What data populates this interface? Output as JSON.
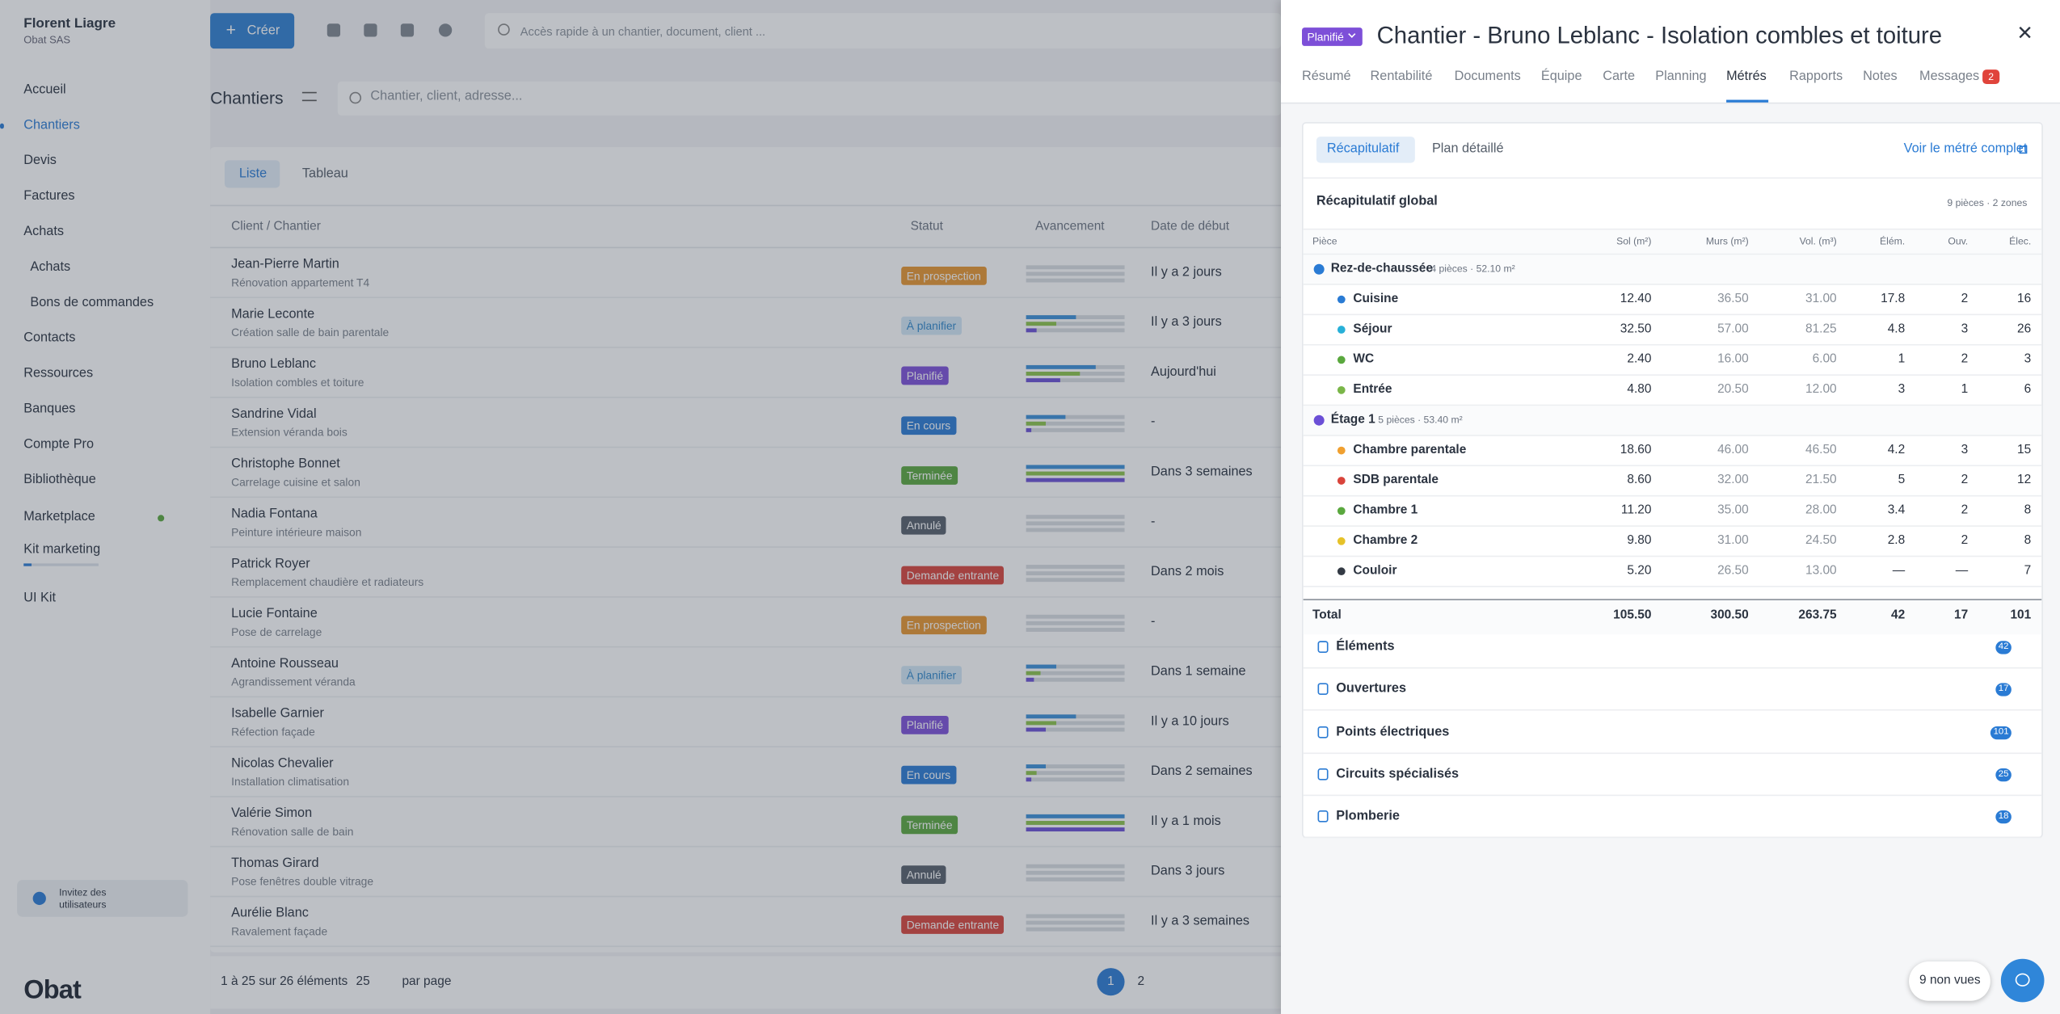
{
  "sidebar": {
    "user": "Florent Liagre",
    "company": "Obat SAS",
    "nav": [
      {
        "label": "Accueil"
      },
      {
        "label": "Chantiers",
        "active": true
      },
      {
        "label": "Devis"
      },
      {
        "label": "Factures"
      },
      {
        "label": "Achats"
      },
      {
        "label": "Achats",
        "sub": true
      },
      {
        "label": "Bons de commandes",
        "sub": true
      },
      {
        "label": "Contacts"
      },
      {
        "label": "Ressources"
      },
      {
        "label": "Banques"
      },
      {
        "label": "Compte Pro"
      },
      {
        "label": "Bibliothèque"
      },
      {
        "label": "Marketplace",
        "dot": "#5aa83e"
      },
      {
        "label": "Kit marketing",
        "progress": 1
      },
      {
        "label": "UI Kit"
      }
    ],
    "invite": "Invitez des utilisateurs",
    "logo": "Obat"
  },
  "topbar": {
    "create": "Créer",
    "search": "Accès rapide à un chantier, document, client ..."
  },
  "list": {
    "title": "Chantiers",
    "search": "Chantier, client, adresse...",
    "tabs": [
      "Liste",
      "Tableau"
    ],
    "columns": [
      "Client / Chantier",
      "Statut",
      "Avancement",
      "Date de début"
    ],
    "rows": [
      {
        "client": "Jean-Pierre Martin",
        "project": "Rénovation appartement T4",
        "status": "En prospection",
        "status_bg": "#e8952f",
        "status_fg": "#ffffff",
        "progress": [
          0,
          0,
          0
        ],
        "start": "Il y a 2 jours"
      },
      {
        "client": "Marie Leconte",
        "project": "Création salle de bain parentale",
        "status": "À planifier",
        "status_bg": "#d3e8f7",
        "status_fg": "#2f86c9",
        "progress": [
          0.5,
          0.3,
          0.1
        ],
        "start": "Il y a 3 jours"
      },
      {
        "client": "Bruno Leblanc",
        "project": "Isolation combles et toiture",
        "status": "Planifié",
        "status_bg": "#7d4fd8",
        "status_fg": "#ffffff",
        "progress": [
          0.7,
          0.55,
          0.35
        ],
        "start": "Aujourd'hui"
      },
      {
        "client": "Sandrine Vidal",
        "project": "Extension véranda bois",
        "status": "En cours",
        "status_bg": "#2a7bd4",
        "status_fg": "#ffffff",
        "progress": [
          0.4,
          0.2,
          0.05
        ],
        "start": "-"
      },
      {
        "client": "Christophe Bonnet",
        "project": "Carrelage cuisine et salon",
        "status": "Terminée",
        "status_bg": "#5aa83e",
        "status_fg": "#ffffff",
        "progress": [
          1,
          1,
          1
        ],
        "start": "Dans 3 semaines"
      },
      {
        "client": "Nadia Fontana",
        "project": "Peinture intérieure maison",
        "status": "Annulé",
        "status_bg": "#555e6a",
        "status_fg": "#ffffff",
        "progress": [
          0,
          0,
          0
        ],
        "start": "-"
      },
      {
        "client": "Patrick Royer",
        "project": "Remplacement chaudière et radiateurs",
        "status": "Demande entrante",
        "status_bg": "#d9443b",
        "status_fg": "#ffffff",
        "progress": [
          0,
          0,
          0
        ],
        "start": "Dans 2 mois"
      },
      {
        "client": "Lucie Fontaine",
        "project": "Pose de carrelage",
        "status": "En prospection",
        "status_bg": "#e8952f",
        "status_fg": "#ffffff",
        "progress": [
          0,
          0,
          0
        ],
        "start": "-"
      },
      {
        "client": "Antoine Rousseau",
        "project": "Agrandissement véranda",
        "status": "À planifier",
        "status_bg": "#d3e8f7",
        "status_fg": "#2f86c9",
        "progress": [
          0.3,
          0.15,
          0.08
        ],
        "start": "Dans 1 semaine"
      },
      {
        "client": "Isabelle Garnier",
        "project": "Réfection façade",
        "status": "Planifié",
        "status_bg": "#7d4fd8",
        "status_fg": "#ffffff",
        "progress": [
          0.5,
          0.3,
          0.2
        ],
        "start": "Il y a 10 jours"
      },
      {
        "client": "Nicolas Chevalier",
        "project": "Installation climatisation",
        "status": "En cours",
        "status_bg": "#2a7bd4",
        "status_fg": "#ffffff",
        "progress": [
          0.2,
          0.1,
          0.05
        ],
        "start": "Dans 2 semaines"
      },
      {
        "client": "Valérie Simon",
        "project": "Rénovation salle de bain",
        "status": "Terminée",
        "status_bg": "#5aa83e",
        "status_fg": "#ffffff",
        "progress": [
          1,
          1,
          1
        ],
        "start": "Il y a 1 mois"
      },
      {
        "client": "Thomas Girard",
        "project": "Pose fenêtres double vitrage",
        "status": "Annulé",
        "status_bg": "#555e6a",
        "status_fg": "#ffffff",
        "progress": [
          0,
          0,
          0
        ],
        "start": "Dans 3 jours"
      },
      {
        "client": "Aurélie Blanc",
        "project": "Ravalement façade",
        "status": "Demande entrante",
        "status_bg": "#d9443b",
        "status_fg": "#ffffff",
        "progress": [
          0,
          0,
          0
        ],
        "start": "Il y a 3 semaines"
      }
    ],
    "footer": {
      "range": "1 à 25 sur 26 éléments",
      "per_page": "25",
      "per_page_label": "par page",
      "pages": [
        "1",
        "2"
      ]
    }
  },
  "panel": {
    "status": "Planifié",
    "title": "Chantier - Bruno Leblanc - Isolation combles et toiture",
    "tabs": [
      {
        "label": "Résumé"
      },
      {
        "label": "Rentabilité"
      },
      {
        "label": "Documents"
      },
      {
        "label": "Équipe"
      },
      {
        "label": "Carte"
      },
      {
        "label": "Planning"
      },
      {
        "label": "Métrés",
        "active": true
      },
      {
        "label": "Rapports"
      },
      {
        "label": "Notes"
      },
      {
        "label": "Messages",
        "badge": "2"
      }
    ],
    "subtabs": [
      "Récapitulatif",
      "Plan détaillé"
    ],
    "link": "Voir le métré complet",
    "section_title": "Récapitulatif global",
    "section_summary": "9 pièces · 2 zones",
    "columns": [
      "Pièce",
      "Sol (m²)",
      "Murs (m²)",
      "Vol. (m³)",
      "Élém.",
      "Ouv.",
      "Élec."
    ],
    "zones": [
      {
        "name": "Rez-de-chaussée",
        "summary": "4 pièces · 52.10 m²",
        "color": "#2a7bd4",
        "rooms": [
          {
            "name": "Cuisine",
            "color": "#2a7bd4",
            "values": [
              "12.40",
              "36.50",
              "31.00",
              "17.8",
              "2",
              "16"
            ]
          },
          {
            "name": "Séjour",
            "color": "#27b0d8",
            "values": [
              "32.50",
              "57.00",
              "81.25",
              "4.8",
              "3",
              "26"
            ]
          },
          {
            "name": "WC",
            "color": "#5aa83e",
            "values": [
              "2.40",
              "16.00",
              "6.00",
              "1",
              "2",
              "3"
            ]
          },
          {
            "name": "Entrée",
            "color": "#7ab648",
            "values": [
              "4.80",
              "20.50",
              "12.00",
              "3",
              "1",
              "6"
            ]
          }
        ]
      },
      {
        "name": "Étage 1",
        "summary": "5 pièces · 53.40 m²",
        "color": "#6b4fd6",
        "rooms": [
          {
            "name": "Chambre parentale",
            "color": "#f0a030",
            "values": [
              "18.60",
              "46.00",
              "46.50",
              "4.2",
              "3",
              "15"
            ]
          },
          {
            "name": "SDB parentale",
            "color": "#d9443b",
            "values": [
              "8.60",
              "32.00",
              "21.50",
              "5",
              "2",
              "12"
            ]
          },
          {
            "name": "Chambre 1",
            "color": "#5aa83e",
            "values": [
              "11.20",
              "35.00",
              "28.00",
              "3.4",
              "2",
              "8"
            ]
          },
          {
            "name": "Chambre 2",
            "color": "#e6c229",
            "values": [
              "9.80",
              "31.00",
              "24.50",
              "2.8",
              "2",
              "8"
            ]
          },
          {
            "name": "Couloir",
            "color": "#333a44",
            "values": [
              "5.20",
              "26.50",
              "13.00",
              "—",
              "—",
              "7"
            ]
          }
        ]
      }
    ],
    "total": {
      "label": "Total",
      "values": [
        "105.50",
        "300.50",
        "263.75",
        "42",
        "17",
        "101"
      ]
    },
    "accordions": [
      {
        "label": "Éléments",
        "count": "42"
      },
      {
        "label": "Ouvertures",
        "count": "17"
      },
      {
        "label": "Points électriques",
        "count": "101"
      },
      {
        "label": "Circuits spécialisés",
        "count": "25"
      },
      {
        "label": "Plomberie",
        "count": "18"
      }
    ],
    "unread": "9 non vues"
  }
}
